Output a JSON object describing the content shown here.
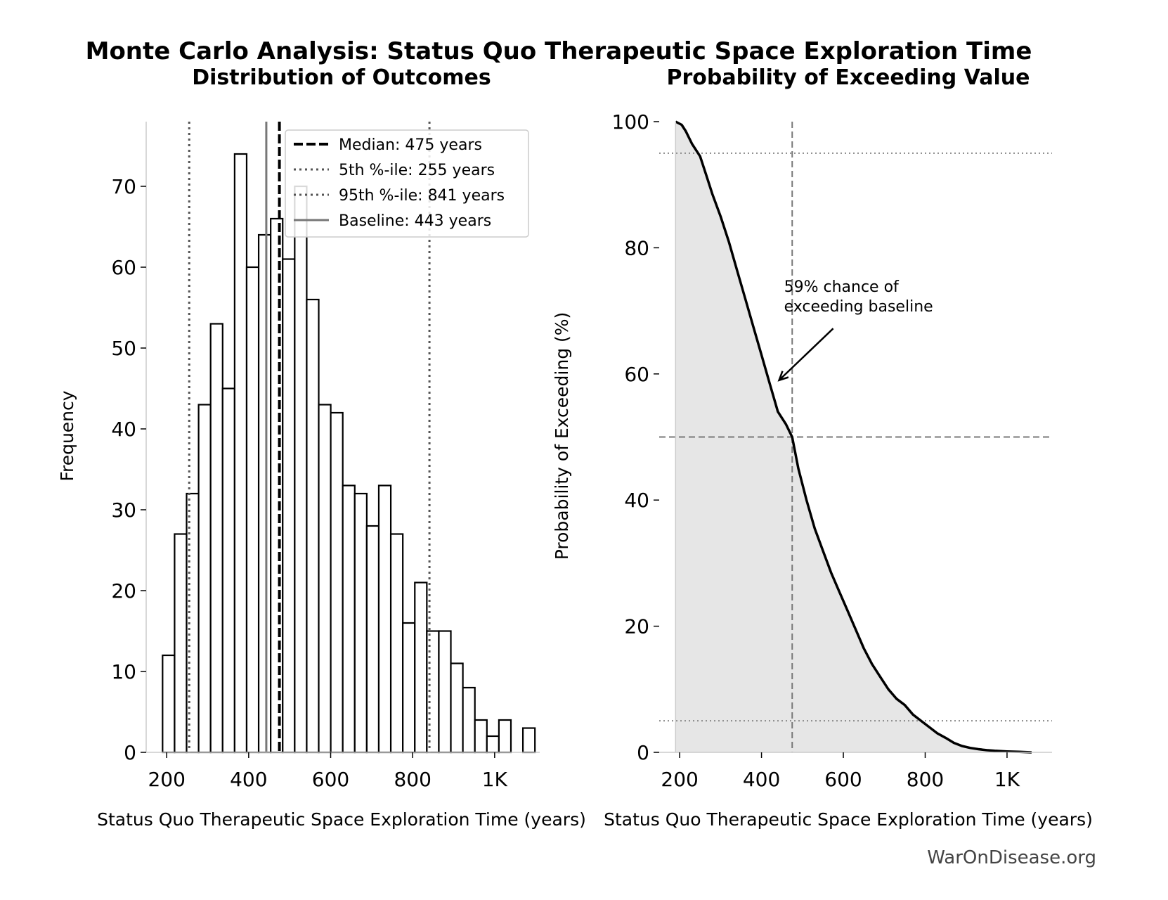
{
  "figure": {
    "title": "Monte Carlo Analysis: Status Quo Therapeutic Space Exploration Time",
    "watermark": "WarOnDisease.org"
  },
  "chart_data": [
    {
      "type": "bar",
      "title": "Distribution of Outcomes",
      "xlabel": "Status Quo Therapeutic Space Exploration Time (years)",
      "ylabel": "Frequency",
      "xlim": [
        150,
        1110
      ],
      "ylim": [
        0,
        78
      ],
      "xticks": [
        200,
        400,
        600,
        800,
        1000
      ],
      "xtick_labels": [
        "200",
        "400",
        "600",
        "800",
        "1K"
      ],
      "yticks": [
        0,
        10,
        20,
        30,
        40,
        50,
        60,
        70
      ],
      "bin_start": 190,
      "bin_width": 29.3,
      "counts": [
        12,
        27,
        32,
        43,
        53,
        45,
        74,
        60,
        64,
        66,
        61,
        70,
        56,
        43,
        42,
        33,
        32,
        28,
        33,
        27,
        16,
        21,
        15,
        15,
        11,
        8,
        4,
        2,
        4,
        0,
        3
      ],
      "vlines": [
        {
          "label": "Median: 475 years",
          "value": 475,
          "style": "dashed",
          "color": "#000000"
        },
        {
          "label": "5th %-ile: 255 years",
          "value": 255,
          "style": "dotted",
          "color": "#555555"
        },
        {
          "label": "95th %-ile: 841 years",
          "value": 841,
          "style": "dotted",
          "color": "#555555"
        },
        {
          "label": "Baseline: 443 years",
          "value": 443,
          "style": "solid",
          "color": "#777777"
        }
      ],
      "legend_position": "upper-right",
      "grid": false
    },
    {
      "type": "area",
      "title": "Probability of Exceeding Value",
      "xlabel": "Status Quo Therapeutic Space Exploration Time (years)",
      "ylabel": "Probability of Exceeding (%)",
      "xlim": [
        150,
        1110
      ],
      "ylim": [
        0,
        100
      ],
      "xticks": [
        200,
        400,
        600,
        800,
        1000
      ],
      "xtick_labels": [
        "200",
        "400",
        "600",
        "800",
        "1K"
      ],
      "yticks": [
        0,
        20,
        40,
        60,
        80,
        100
      ],
      "x": [
        190,
        205,
        215,
        230,
        250,
        265,
        280,
        300,
        320,
        340,
        360,
        380,
        400,
        420,
        440,
        460,
        475,
        490,
        510,
        530,
        550,
        570,
        590,
        610,
        630,
        650,
        670,
        690,
        710,
        730,
        750,
        770,
        790,
        810,
        830,
        850,
        870,
        890,
        910,
        930,
        950,
        970,
        1000,
        1030,
        1060
      ],
      "y": [
        100,
        99.5,
        98.5,
        96.5,
        94.5,
        91.5,
        88.5,
        85,
        81,
        76.5,
        72,
        67.5,
        63,
        58.5,
        54,
        52,
        50,
        45,
        40,
        35.5,
        32,
        28.5,
        25.5,
        22.5,
        19.5,
        16.5,
        14,
        12,
        10,
        8.5,
        7.5,
        6,
        5,
        4,
        3,
        2.3,
        1.5,
        1,
        0.7,
        0.5,
        0.35,
        0.25,
        0.15,
        0.08,
        0
      ],
      "hlines": [
        95,
        50,
        5
      ],
      "vline": 475,
      "annotation": {
        "text_lines": [
          "59% chance of",
          "exceeding baseline"
        ],
        "point": [
          443,
          59
        ],
        "text_pos": [
          455,
          73
        ]
      },
      "grid": false
    }
  ]
}
